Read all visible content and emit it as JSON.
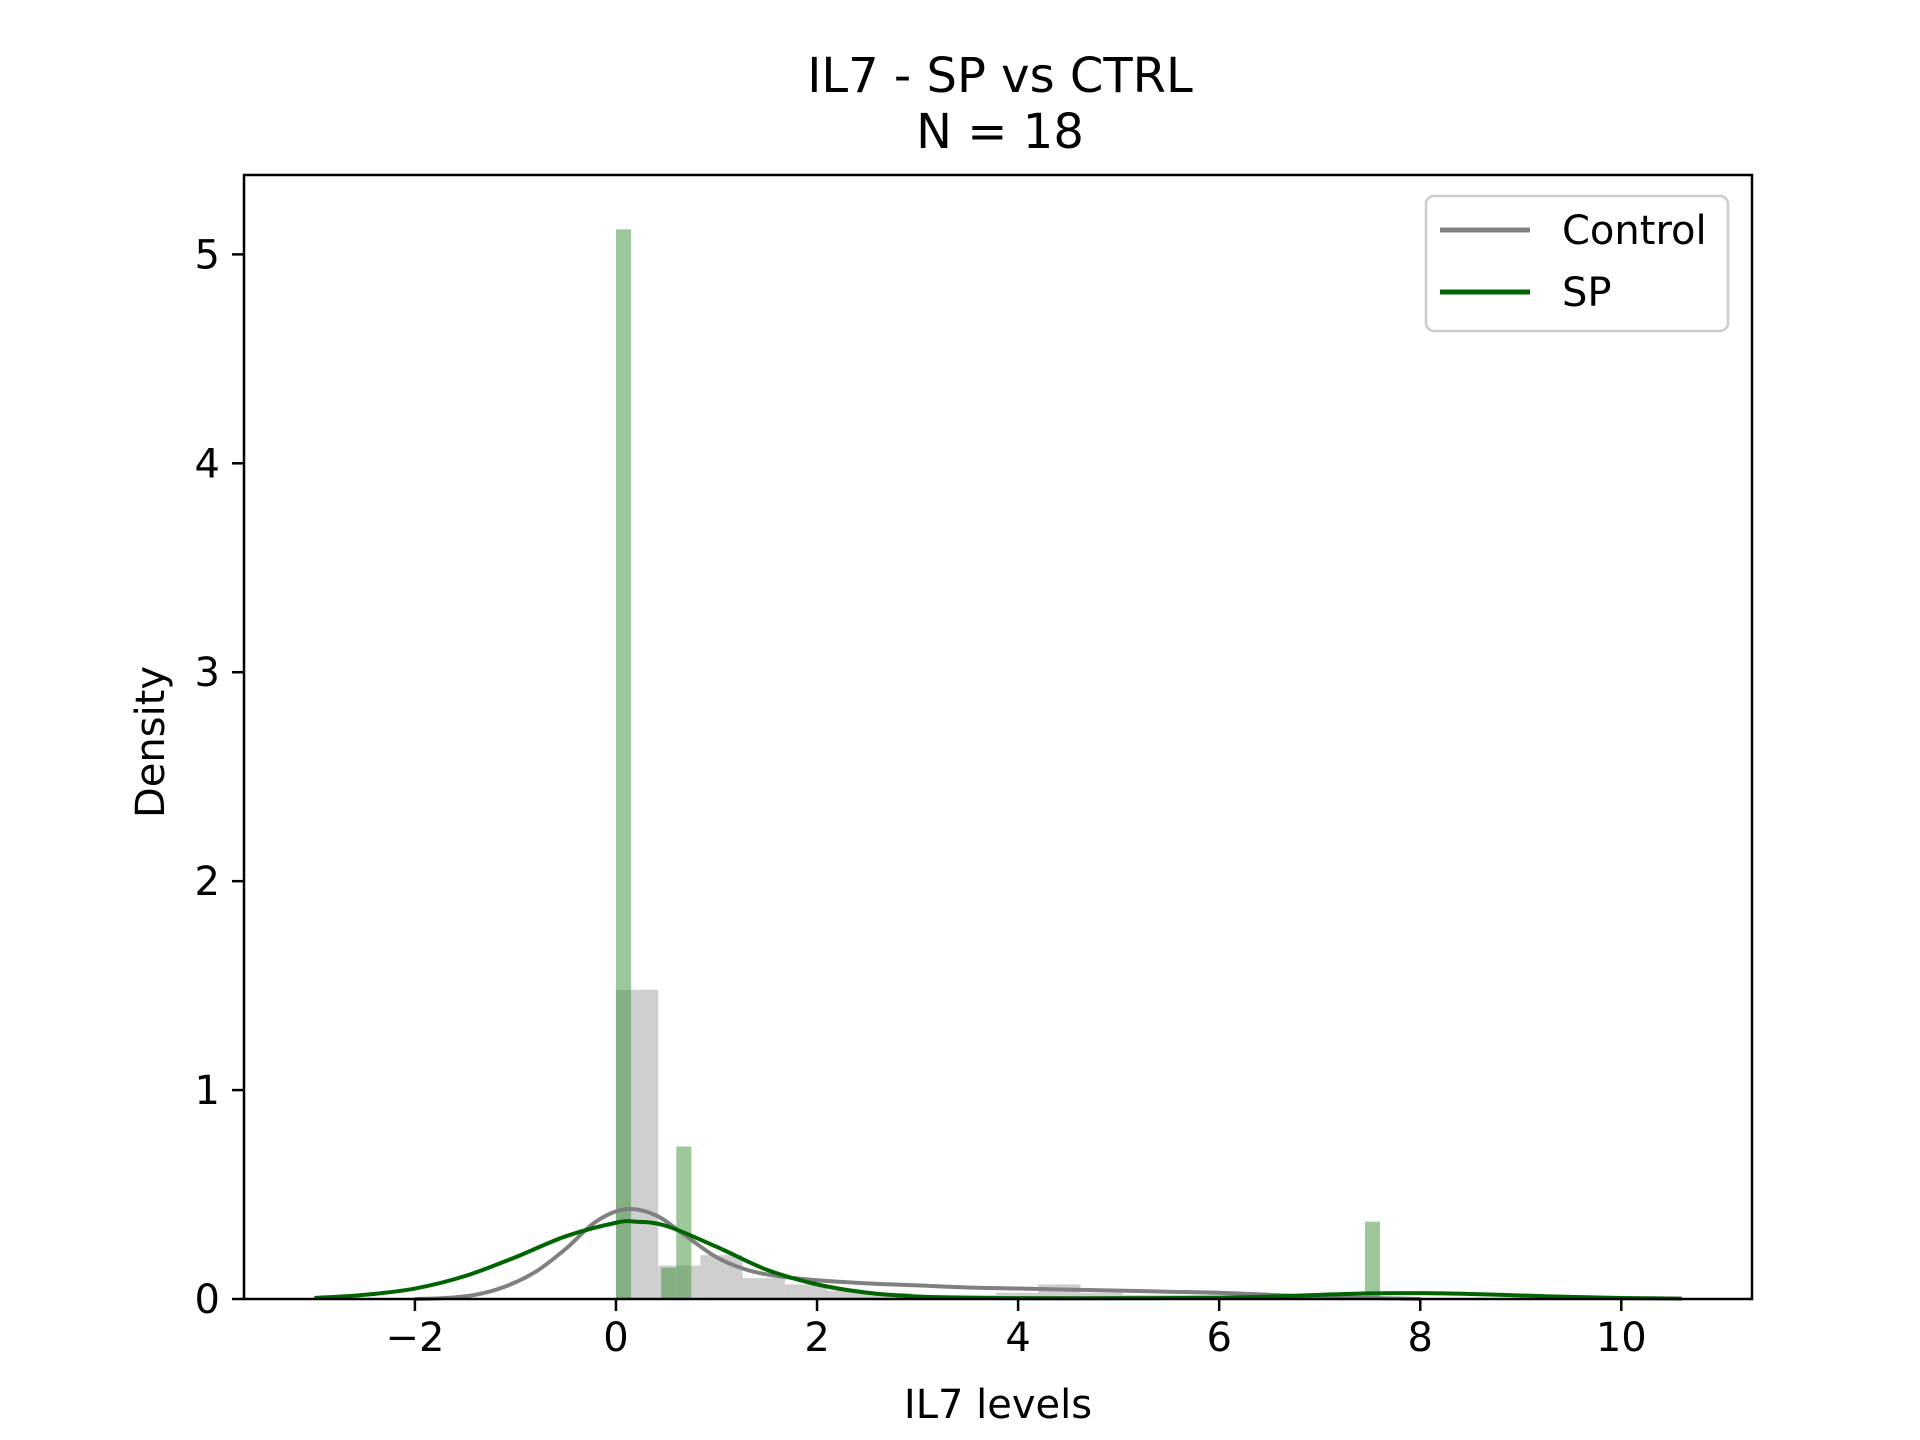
{
  "chart_data": {
    "type": "histogram-kde",
    "title": "IL7 - SP vs CTRL",
    "subtitle": "N = 18",
    "xlabel": "IL7 levels",
    "ylabel": "Density",
    "xlim": [
      -3.7,
      11.3
    ],
    "ylim": [
      0,
      5.38
    ],
    "x_ticks": [
      {
        "value": -2,
        "label": "−2"
      },
      {
        "value": 0,
        "label": "0"
      },
      {
        "value": 2,
        "label": "2"
      },
      {
        "value": 4,
        "label": "4"
      },
      {
        "value": 6,
        "label": "6"
      },
      {
        "value": 8,
        "label": "8"
      },
      {
        "value": 10,
        "label": "10"
      }
    ],
    "y_ticks": [
      {
        "value": 0,
        "label": "0"
      },
      {
        "value": 1,
        "label": "1"
      },
      {
        "value": 2,
        "label": "2"
      },
      {
        "value": 3,
        "label": "3"
      },
      {
        "value": 4,
        "label": "4"
      },
      {
        "value": 5,
        "label": "5"
      }
    ],
    "legend": {
      "position": "top-right"
    },
    "series": [
      {
        "name": "Control",
        "color": "#808080",
        "bar_color": "#bfbfbf",
        "bar_opacity": 0.75,
        "histogram": [
          {
            "x0": 0.0,
            "x1": 0.42,
            "density": 1.48
          },
          {
            "x0": 0.42,
            "x1": 0.84,
            "density": 0.16
          },
          {
            "x0": 0.84,
            "x1": 1.26,
            "density": 0.21
          },
          {
            "x0": 1.26,
            "x1": 1.68,
            "density": 0.1
          },
          {
            "x0": 1.68,
            "x1": 2.1,
            "density": 0.07
          },
          {
            "x0": 2.1,
            "x1": 2.52,
            "density": 0.04
          },
          {
            "x0": 2.52,
            "x1": 2.94,
            "density": 0.03
          },
          {
            "x0": 2.94,
            "x1": 3.36,
            "density": 0.02
          },
          {
            "x0": 3.36,
            "x1": 3.78,
            "density": 0.02
          },
          {
            "x0": 3.78,
            "x1": 4.2,
            "density": 0.03
          },
          {
            "x0": 4.2,
            "x1": 4.62,
            "density": 0.07
          },
          {
            "x0": 4.62,
            "x1": 5.04,
            "density": 0.03
          },
          {
            "x0": 5.04,
            "x1": 5.46,
            "density": 0.02
          },
          {
            "x0": 5.46,
            "x1": 5.88,
            "density": 0.02
          },
          {
            "x0": 5.88,
            "x1": 6.3,
            "density": 0.03
          }
        ],
        "kde": [
          [
            -2.0,
            0.0
          ],
          [
            -1.7,
            0.005
          ],
          [
            -1.4,
            0.02
          ],
          [
            -1.1,
            0.06
          ],
          [
            -0.8,
            0.13
          ],
          [
            -0.5,
            0.24
          ],
          [
            -0.2,
            0.37
          ],
          [
            0.1,
            0.43
          ],
          [
            0.4,
            0.4
          ],
          [
            0.7,
            0.3
          ],
          [
            1.0,
            0.2
          ],
          [
            1.3,
            0.14
          ],
          [
            1.6,
            0.11
          ],
          [
            2.0,
            0.09
          ],
          [
            2.5,
            0.075
          ],
          [
            3.0,
            0.065
          ],
          [
            3.5,
            0.055
          ],
          [
            4.0,
            0.05
          ],
          [
            4.5,
            0.045
          ],
          [
            5.0,
            0.04
          ],
          [
            5.5,
            0.035
          ],
          [
            6.0,
            0.03
          ],
          [
            6.5,
            0.02
          ],
          [
            7.0,
            0.01
          ],
          [
            7.5,
            0.005
          ],
          [
            8.0,
            0.0
          ]
        ]
      },
      {
        "name": "SP",
        "color": "#006400",
        "bar_color": "#3a923a",
        "bar_opacity": 0.5,
        "histogram": [
          {
            "x0": 0.0,
            "x1": 0.15,
            "density": 5.12
          },
          {
            "x0": 0.45,
            "x1": 0.6,
            "density": 0.15
          },
          {
            "x0": 0.6,
            "x1": 0.75,
            "density": 0.73
          },
          {
            "x0": 7.45,
            "x1": 7.6,
            "density": 0.37
          }
        ],
        "kde": [
          [
            -3.0,
            0.005
          ],
          [
            -2.5,
            0.02
          ],
          [
            -2.0,
            0.05
          ],
          [
            -1.5,
            0.11
          ],
          [
            -1.0,
            0.2
          ],
          [
            -0.5,
            0.3
          ],
          [
            0.0,
            0.365
          ],
          [
            0.2,
            0.37
          ],
          [
            0.5,
            0.35
          ],
          [
            1.0,
            0.25
          ],
          [
            1.5,
            0.14
          ],
          [
            2.0,
            0.07
          ],
          [
            2.5,
            0.03
          ],
          [
            3.0,
            0.012
          ],
          [
            3.5,
            0.006
          ],
          [
            4.0,
            0.004
          ],
          [
            5.0,
            0.004
          ],
          [
            6.0,
            0.006
          ],
          [
            6.5,
            0.012
          ],
          [
            7.0,
            0.02
          ],
          [
            7.5,
            0.027
          ],
          [
            8.0,
            0.028
          ],
          [
            8.5,
            0.024
          ],
          [
            9.0,
            0.017
          ],
          [
            9.5,
            0.01
          ],
          [
            10.0,
            0.005
          ],
          [
            10.6,
            0.002
          ]
        ]
      }
    ]
  }
}
